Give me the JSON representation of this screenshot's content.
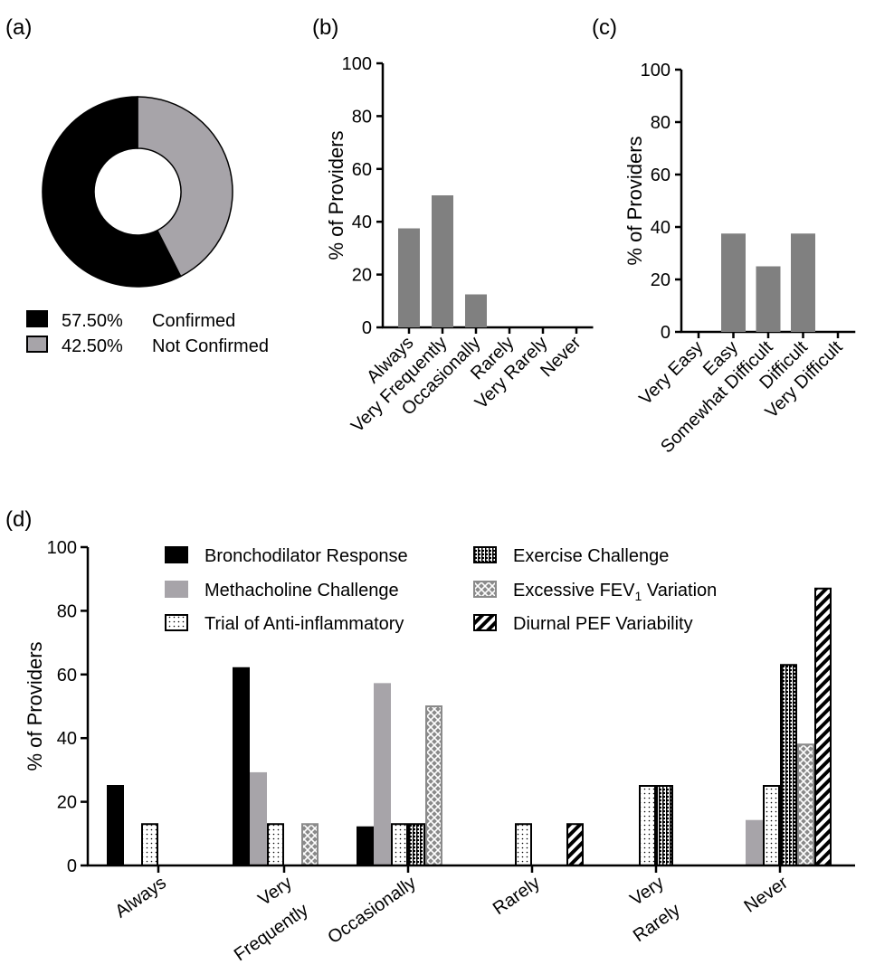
{
  "colors": {
    "black": "#000000",
    "gray": "#808080",
    "light_gray": "#a7a4a9",
    "white": "#ffffff"
  },
  "chart_data": [
    {
      "panel": "(a)",
      "type": "pie",
      "donut": true,
      "slices": [
        {
          "label": "Confirmed",
          "value": 57.5,
          "pct_text": "57.50%",
          "color": "#000000"
        },
        {
          "label": "Not Confirmed",
          "value": 42.5,
          "pct_text": "42.50%",
          "color": "#a7a4a9"
        }
      ],
      "legend_position": "bottom"
    },
    {
      "panel": "(b)",
      "type": "bar",
      "categories": [
        "Always",
        "Very Frequently",
        "Occasionally",
        "Rarely",
        "Very Rarely",
        "Never"
      ],
      "values": [
        37.5,
        50,
        12.5,
        0,
        0,
        0
      ],
      "ylabel": "% of Providers",
      "ylim": [
        0,
        100
      ],
      "yticks": [
        0,
        20,
        40,
        60,
        80,
        100
      ],
      "color": "#808080"
    },
    {
      "panel": "(c)",
      "type": "bar",
      "categories": [
        "Very Easy",
        "Easy",
        "Somewhat Difficult",
        "Difficult",
        "Very Difficult"
      ],
      "values": [
        0,
        37.5,
        25,
        37.5,
        0
      ],
      "ylabel": "% of Providers",
      "ylim": [
        0,
        100
      ],
      "yticks": [
        0,
        20,
        40,
        60,
        80,
        100
      ],
      "color": "#808080"
    },
    {
      "panel": "(d)",
      "type": "bar",
      "categories": [
        "Always",
        "Very\nFrequently",
        "Occasionally",
        "Rarely",
        "Very\nRarely",
        "Never"
      ],
      "ylabel": "% of Providers",
      "ylim": [
        0,
        100
      ],
      "yticks": [
        0,
        20,
        40,
        60,
        80,
        100
      ],
      "legend_position": "top",
      "series": [
        {
          "name": "Bronchodilator Response",
          "pattern": "solid-black",
          "values": [
            25,
            62,
            12,
            0,
            0,
            0
          ]
        },
        {
          "name": "Methacholine Challenge",
          "pattern": "solid-gray",
          "values": [
            0,
            29,
            57,
            0,
            0,
            14
          ]
        },
        {
          "name": "Trial of Anti-inflammatory",
          "pattern": "dots",
          "values": [
            13,
            13,
            13,
            13,
            25,
            25
          ]
        },
        {
          "name": "Exercise Challenge",
          "pattern": "grid-dark",
          "values": [
            0,
            0,
            13,
            0,
            25,
            63
          ]
        },
        {
          "name": "Excessive FEV1 Variation",
          "name_main": "Excessive FEV",
          "name_sub": "1",
          "name_tail": " Variation",
          "pattern": "crosshatch",
          "values": [
            0,
            13,
            50,
            0,
            0,
            38
          ]
        },
        {
          "name": "Diurnal PEF Variability",
          "pattern": "diagonal",
          "values": [
            0,
            0,
            0,
            13,
            0,
            87
          ]
        }
      ]
    }
  ]
}
